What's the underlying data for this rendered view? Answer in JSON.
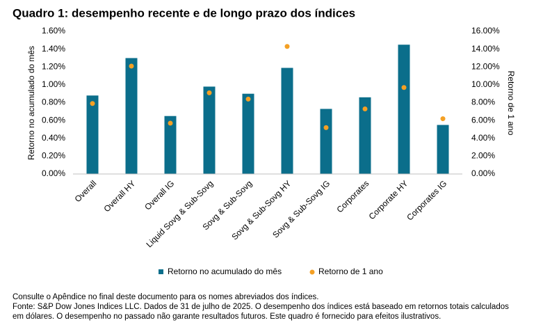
{
  "chart_data": {
    "type": "bar-dot",
    "title": "Quadro 1: desempenho recente e de longo prazo dos índices",
    "y_label": "Retorno no acumulado do mês",
    "y2_label": "Retorno de 1 ano",
    "categories": [
      "Overall",
      "Overall HY",
      "Overall IG",
      "Liquid Sovg & Sub-Sovg",
      "Sovg & Sub-Sovg",
      "Sovg & Sub-Sovg HY",
      "Sovg & Sub-Sovg IG",
      "Corporates",
      "Corporate HY",
      "Corporates IG"
    ],
    "series": [
      {
        "name": "Retorno no acumulado do mês",
        "color": "#0b6e8b",
        "values": [
          0.88,
          1.3,
          0.65,
          0.98,
          0.9,
          1.19,
          0.73,
          0.86,
          1.45,
          0.55
        ]
      },
      {
        "name": "Retorno de 1 ano",
        "color": "#f4a024",
        "axis": "y2",
        "values": [
          7.9,
          12.1,
          5.7,
          9.1,
          8.4,
          14.3,
          5.2,
          7.3,
          9.7,
          6.2
        ]
      }
    ],
    "ylim": [
      0,
      1.6
    ],
    "yticks": [
      {
        "value": 0,
        "label": "0.00%"
      },
      {
        "value": 0.2,
        "label": "0.20%"
      },
      {
        "value": 0.4,
        "label": "0.40%"
      },
      {
        "value": 0.6,
        "label": "0.60%"
      },
      {
        "value": 0.8,
        "label": "0.80%"
      },
      {
        "value": 1.0,
        "label": "1.00%"
      },
      {
        "value": 1.2,
        "label": "1.20%"
      },
      {
        "value": 1.4,
        "label": "1.40%"
      },
      {
        "value": 1.6,
        "label": "1.60%"
      }
    ],
    "y2lim": [
      0,
      16
    ],
    "y2ticks": [
      {
        "value": 0,
        "label": "0.00%"
      },
      {
        "value": 2,
        "label": "2.00%"
      },
      {
        "value": 4,
        "label": "4.00%"
      },
      {
        "value": 6,
        "label": "6.00%"
      },
      {
        "value": 8,
        "label": "8.00%"
      },
      {
        "value": 10,
        "label": "10.00%"
      },
      {
        "value": 12,
        "label": "12.00%"
      },
      {
        "value": 14,
        "label": "14.00%"
      },
      {
        "value": 16,
        "label": "16.00%"
      }
    ],
    "legend": "bottom",
    "footnotes": [
      "Consulte o Apêndice no final deste documento para os nomes abreviados dos índices.",
      "Fonte: S&P Dow Jones Indices LLC. Dados de 31 de julho de 2025. O desempenho dos índices está baseado em retornos totais calculados",
      "em dólares. O desempenho no passado não garante resultados futuros. Este quadro é fornecido para efeitos ilustrativos."
    ]
  }
}
